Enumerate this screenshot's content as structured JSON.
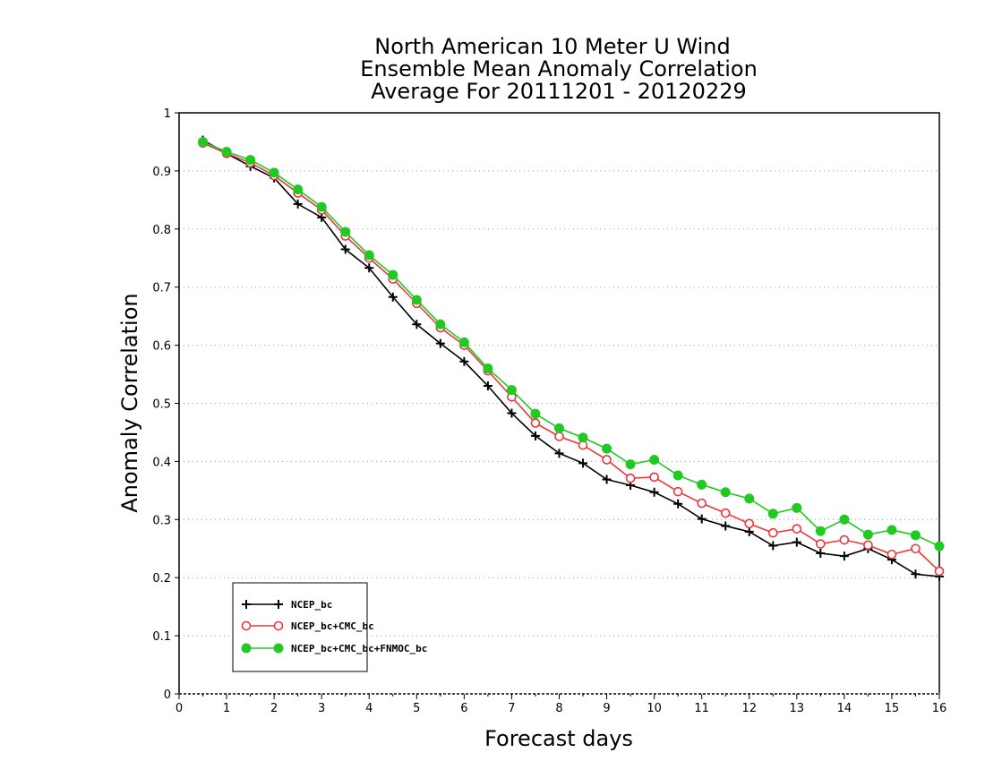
{
  "chart_data": {
    "type": "line",
    "title_lines": [
      "North American 10 Meter U Wind",
      "Ensemble Mean Anomaly Correlation",
      "Average For 20111201 - 20120229"
    ],
    "xlabel": "Forecast days",
    "ylabel": "Anomaly Correlation",
    "xlim": [
      0,
      16
    ],
    "ylim": [
      0,
      1
    ],
    "x_ticks": [
      0,
      1,
      2,
      3,
      4,
      5,
      6,
      7,
      8,
      9,
      10,
      11,
      12,
      13,
      14,
      15,
      16
    ],
    "y_ticks": [
      0,
      0.1,
      0.2,
      0.3,
      0.4,
      0.5,
      0.6,
      0.7,
      0.8,
      0.9,
      1
    ],
    "y_tick_labels": [
      "0",
      "0.1",
      "0.2",
      "0.3",
      "0.4",
      "0.5",
      "0.6",
      "0.7",
      "0.8",
      "0.9",
      "1"
    ],
    "grid": "horizontal dotted",
    "legend_position": "bottom-left",
    "x": [
      0.5,
      1,
      1.5,
      2,
      2.5,
      3,
      3.5,
      4,
      4.5,
      5,
      5.5,
      6,
      6.5,
      7,
      7.5,
      8,
      8.5,
      9,
      9.5,
      10,
      10.5,
      11,
      11.5,
      12,
      12.5,
      13,
      13.5,
      14,
      14.5,
      15,
      15.5,
      16
    ],
    "series": [
      {
        "name": "NCEP_bc",
        "color": "#000000",
        "marker": "plus",
        "values": [
          0.953,
          0.93,
          0.908,
          0.888,
          0.843,
          0.82,
          0.765,
          0.733,
          0.683,
          0.636,
          0.603,
          0.572,
          0.53,
          0.483,
          0.444,
          0.414,
          0.397,
          0.369,
          0.359,
          0.347,
          0.327,
          0.301,
          0.289,
          0.279,
          0.255,
          0.261,
          0.242,
          0.237,
          0.25,
          0.231,
          0.206,
          0.202
        ]
      },
      {
        "name": "NCEP_bc+CMC_bc",
        "color": "#e8383d",
        "marker": "open-circle",
        "values": [
          0.948,
          0.93,
          0.914,
          0.892,
          0.862,
          0.833,
          0.788,
          0.75,
          0.714,
          0.672,
          0.63,
          0.6,
          0.556,
          0.511,
          0.466,
          0.443,
          0.428,
          0.403,
          0.371,
          0.373,
          0.348,
          0.328,
          0.311,
          0.293,
          0.277,
          0.284,
          0.258,
          0.265,
          0.256,
          0.24,
          0.25,
          0.211
        ]
      },
      {
        "name": "NCEP_bc+CMC_bc+FNMOC_bc",
        "color": "#22c922",
        "marker": "filled-circle",
        "values": [
          0.95,
          0.933,
          0.919,
          0.897,
          0.868,
          0.838,
          0.795,
          0.755,
          0.721,
          0.678,
          0.636,
          0.605,
          0.56,
          0.523,
          0.482,
          0.457,
          0.441,
          0.422,
          0.395,
          0.403,
          0.376,
          0.36,
          0.347,
          0.336,
          0.31,
          0.32,
          0.28,
          0.3,
          0.274,
          0.282,
          0.273,
          0.254
        ]
      }
    ]
  }
}
